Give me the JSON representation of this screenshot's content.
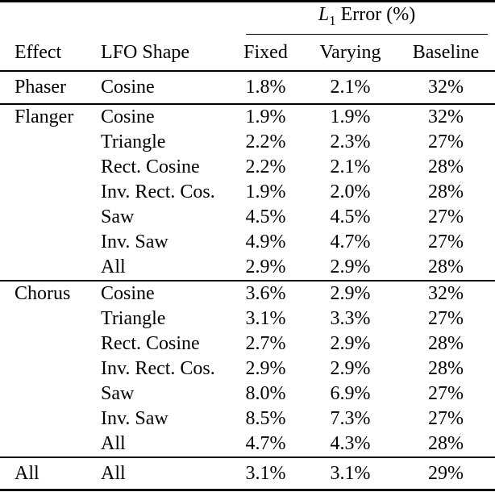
{
  "table": {
    "group_header": {
      "var": "L",
      "sub": "1",
      "rest": "Error (%)"
    },
    "columns": [
      "Effect",
      "LFO Shape",
      "Fixed",
      "Varying",
      "Baseline"
    ],
    "sections": [
      {
        "effect": "Phaser",
        "rows": [
          [
            "Cosine",
            "1.8%",
            "2.1%",
            "32%"
          ]
        ]
      },
      {
        "effect": "Flanger",
        "rows": [
          [
            "Cosine",
            "1.9%",
            "1.9%",
            "32%"
          ],
          [
            "Triangle",
            "2.2%",
            "2.3%",
            "27%"
          ],
          [
            "Rect. Cosine",
            "2.2%",
            "2.1%",
            "28%"
          ],
          [
            "Inv. Rect. Cos.",
            "1.9%",
            "2.0%",
            "28%"
          ],
          [
            "Saw",
            "4.5%",
            "4.5%",
            "27%"
          ],
          [
            "Inv. Saw",
            "4.9%",
            "4.7%",
            "27%"
          ],
          [
            "All",
            "2.9%",
            "2.9%",
            "28%"
          ]
        ]
      },
      {
        "effect": "Chorus",
        "rows": [
          [
            "Cosine",
            "3.6%",
            "2.9%",
            "32%"
          ],
          [
            "Triangle",
            "3.1%",
            "3.3%",
            "27%"
          ],
          [
            "Rect. Cosine",
            "2.7%",
            "2.9%",
            "28%"
          ],
          [
            "Inv. Rect. Cos.",
            "2.9%",
            "2.9%",
            "28%"
          ],
          [
            "Saw",
            "8.0%",
            "6.9%",
            "27%"
          ],
          [
            "Inv. Saw",
            "8.5%",
            "7.3%",
            "27%"
          ],
          [
            "All",
            "4.7%",
            "4.3%",
            "28%"
          ]
        ]
      },
      {
        "effect": "All",
        "rows": [
          [
            "All",
            "3.1%",
            "3.1%",
            "29%"
          ]
        ]
      }
    ],
    "colors": {
      "text": "#000000",
      "rule": "#000000",
      "background": "#ffffff"
    }
  }
}
